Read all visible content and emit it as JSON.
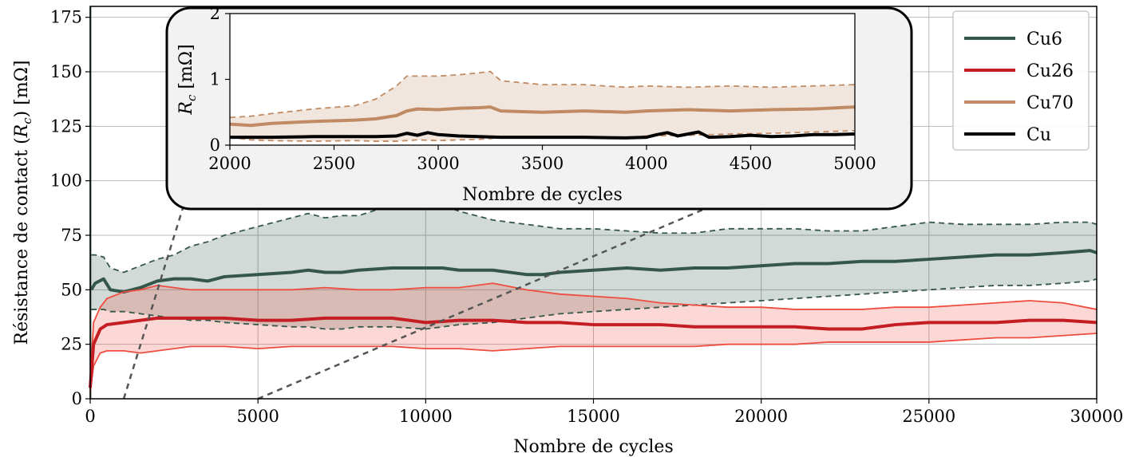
{
  "chart_data": {
    "type": "line",
    "xlabel": "Nombre de cycles",
    "ylabel": "Résistance de contact (R_c) [mΩ]",
    "ylabel_parts": {
      "pre": "Résistance de contact (",
      "sym": "R",
      "sub": "c",
      "post": ") [mΩ]"
    },
    "xlim": [
      0,
      30000
    ],
    "ylim": [
      0,
      180
    ],
    "xticks": [
      0,
      5000,
      10000,
      15000,
      20000,
      25000,
      30000
    ],
    "yticks": [
      0,
      25,
      50,
      75,
      100,
      125,
      150,
      175
    ],
    "grid": true,
    "legend_position": "top-right",
    "series": [
      {
        "name": "Cu6",
        "color": "#34574a",
        "x": [
          30,
          150,
          400,
          600,
          1000,
          1500,
          2000,
          2500,
          3000,
          3500,
          4000,
          5000,
          6000,
          6500,
          7000,
          7500,
          8000,
          9000,
          10000,
          10500,
          11000,
          12000,
          13000,
          13500,
          14000,
          15000,
          16000,
          17000,
          18000,
          19000,
          20000,
          21000,
          22000,
          23000,
          24000,
          25000,
          26000,
          27000,
          28000,
          29000,
          29800,
          30000
        ],
        "mean": [
          50,
          53,
          55,
          50,
          49,
          51,
          54,
          55,
          55,
          54,
          56,
          57,
          58,
          59,
          58,
          58,
          59,
          60,
          60,
          60,
          59,
          59,
          57,
          57,
          58,
          59,
          60,
          59,
          60,
          60,
          61,
          62,
          62,
          63,
          63,
          64,
          65,
          66,
          66,
          67,
          68,
          67
        ],
        "upper": [
          66,
          66,
          65,
          60,
          58,
          61,
          64,
          66,
          70,
          72,
          75,
          79,
          83,
          85,
          83,
          84,
          84,
          89,
          91,
          89,
          86,
          82,
          80,
          79,
          78,
          78,
          77,
          76,
          76,
          78,
          78,
          78,
          77,
          77,
          79,
          81,
          80,
          80,
          80,
          81,
          81,
          80
        ],
        "lower": [
          41,
          41,
          41,
          40,
          40,
          39,
          38,
          37,
          36,
          36,
          35,
          34,
          33,
          33,
          32,
          32,
          33,
          33,
          32,
          33,
          34,
          35,
          37,
          38,
          39,
          40,
          41,
          42,
          43,
          44,
          45,
          46,
          47,
          48,
          49,
          50,
          51,
          52,
          52,
          53,
          54,
          55
        ]
      },
      {
        "name": "Cu26",
        "color": "#c41e24",
        "band_color": "#ee4d40",
        "x": [
          0,
          100,
          300,
          500,
          1000,
          1500,
          2000,
          3000,
          4000,
          5000,
          6000,
          7000,
          8000,
          9000,
          10000,
          11000,
          12000,
          13000,
          14000,
          15000,
          16000,
          17000,
          18000,
          19000,
          20000,
          21000,
          22000,
          23000,
          24000,
          25000,
          26000,
          27000,
          28000,
          29000,
          30000
        ],
        "mean": [
          5,
          25,
          32,
          34,
          35,
          36,
          37,
          37,
          37,
          36,
          36,
          37,
          37,
          37,
          35,
          36,
          36,
          35,
          35,
          34,
          34,
          34,
          33,
          33,
          33,
          33,
          32,
          32,
          34,
          35,
          35,
          35,
          36,
          36,
          35
        ],
        "upper": [
          8,
          35,
          42,
          46,
          49,
          50,
          52,
          50,
          50,
          50,
          50,
          51,
          50,
          50,
          51,
          51,
          53,
          50,
          48,
          47,
          46,
          44,
          43,
          42,
          42,
          41,
          41,
          41,
          42,
          42,
          43,
          44,
          45,
          44,
          41
        ],
        "lower": [
          3,
          15,
          21,
          22,
          22,
          21,
          22,
          24,
          24,
          23,
          24,
          24,
          24,
          24,
          23,
          23,
          22,
          23,
          24,
          24,
          24,
          24,
          24,
          25,
          25,
          25,
          26,
          26,
          26,
          26,
          27,
          28,
          28,
          29,
          30
        ]
      }
    ],
    "legend_entries": [
      {
        "label": "Cu6",
        "color": "#34574a"
      },
      {
        "label": "Cu26",
        "color": "#c41e24"
      },
      {
        "label": "Cu70",
        "color": "#c08b64"
      },
      {
        "label": "Cu",
        "color": "#000000"
      }
    ],
    "inset": {
      "xlabel": "Nombre de cycles",
      "ylabel_parts": {
        "sym": "R",
        "sub": "c",
        "post": " [mΩ]"
      },
      "xlim": [
        2000,
        5000
      ],
      "ylim": [
        0,
        2
      ],
      "xticks": [
        2000,
        2500,
        3000,
        3500,
        4000,
        4500,
        5000
      ],
      "yticks": [
        0,
        1,
        2
      ],
      "series": [
        {
          "name": "Cu70",
          "color": "#c08b64",
          "x": [
            2000,
            2100,
            2200,
            2400,
            2600,
            2700,
            2800,
            2850,
            2900,
            3000,
            3100,
            3200,
            3250,
            3300,
            3500,
            3700,
            3900,
            4000,
            4200,
            4400,
            4600,
            4800,
            5000
          ],
          "mean": [
            0.32,
            0.3,
            0.33,
            0.36,
            0.38,
            0.4,
            0.45,
            0.52,
            0.55,
            0.54,
            0.56,
            0.57,
            0.58,
            0.52,
            0.5,
            0.52,
            0.5,
            0.52,
            0.54,
            0.52,
            0.54,
            0.55,
            0.58
          ],
          "upper": [
            0.42,
            0.44,
            0.48,
            0.55,
            0.6,
            0.7,
            0.9,
            1.05,
            1.05,
            1.05,
            1.07,
            1.1,
            1.12,
            0.98,
            0.92,
            0.92,
            0.88,
            0.9,
            0.88,
            0.9,
            0.88,
            0.9,
            0.92
          ],
          "lower": [
            0.12,
            0.08,
            0.07,
            0.06,
            0.07,
            0.06,
            0.06,
            0.07,
            0.08,
            0.07,
            0.08,
            0.09,
            0.1,
            0.11,
            0.13,
            0.13,
            0.12,
            0.14,
            0.15,
            0.17,
            0.18,
            0.2,
            0.22
          ]
        },
        {
          "name": "Cu",
          "color": "#000000",
          "x": [
            2000,
            2200,
            2400,
            2600,
            2700,
            2800,
            2850,
            2900,
            2950,
            3000,
            3100,
            3300,
            3500,
            3700,
            3900,
            4000,
            4050,
            4100,
            4150,
            4200,
            4250,
            4300,
            4400,
            4500,
            4600,
            4700,
            4800,
            4900,
            5000
          ],
          "mean": [
            0.12,
            0.12,
            0.13,
            0.13,
            0.13,
            0.14,
            0.18,
            0.15,
            0.19,
            0.16,
            0.14,
            0.12,
            0.12,
            0.12,
            0.11,
            0.12,
            0.16,
            0.19,
            0.14,
            0.17,
            0.2,
            0.12,
            0.13,
            0.15,
            0.13,
            0.14,
            0.16,
            0.16,
            0.17
          ]
        }
      ]
    }
  }
}
